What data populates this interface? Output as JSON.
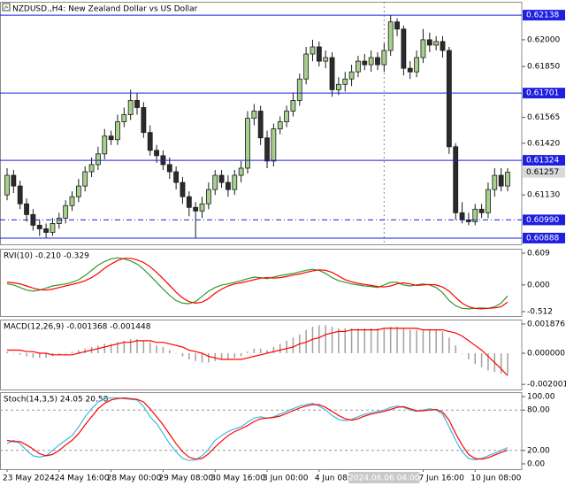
{
  "chart_data": [
    {
      "type": "candlestick",
      "title": "NZDUSD.,H4:  New Zealand Dollar vs US Dollar",
      "categories": [
        "23 May 2024",
        null,
        null,
        null,
        null,
        null,
        null,
        null,
        "24 May 16:00",
        null,
        null,
        null,
        null,
        null,
        null,
        null,
        "28 May 00:00",
        null,
        null,
        null,
        null,
        null,
        null,
        null,
        "29 May 08:00",
        null,
        null,
        null,
        null,
        null,
        null,
        null,
        "30 May 16:00",
        null,
        null,
        null,
        null,
        null,
        null,
        null,
        "3 Jun 00:00",
        null,
        null,
        null,
        null,
        null,
        null,
        null,
        "4 Jun 08:00",
        null,
        null,
        null,
        null,
        null,
        null,
        null,
        null,
        null,
        "2024.06.06 04:00",
        null,
        null,
        null,
        null,
        null,
        "7 Jun 16:00",
        null,
        null,
        null,
        null,
        null,
        null,
        null,
        "10 Jun 08:00",
        null,
        null,
        null,
        null,
        null
      ],
      "series": [
        {
          "up_color": "#a8d08d",
          "down_color": "#2b2b2b",
          "open": [
            0.6113,
            0.6124,
            0.6118,
            0.6108,
            0.6102,
            0.6096,
            0.6094,
            0.6092,
            0.6097,
            0.61,
            0.6107,
            0.6112,
            0.6118,
            0.6126,
            0.613,
            0.6136,
            0.6146,
            0.6144,
            0.6154,
            0.6158,
            0.6166,
            0.6162,
            0.6148,
            0.6138,
            0.6135,
            0.613,
            0.6126,
            0.612,
            0.6112,
            0.6106,
            0.6104,
            0.6108,
            0.6116,
            0.6124,
            0.612,
            0.6116,
            0.6124,
            0.6128,
            0.6156,
            0.616,
            0.6145,
            0.6132,
            0.615,
            0.6154,
            0.616,
            0.6166,
            0.6178,
            0.6192,
            0.6196,
            0.6188,
            0.619,
            0.6172,
            0.6175,
            0.6178,
            0.6182,
            0.6188,
            0.6186,
            0.619,
            0.6186,
            0.6194,
            0.621,
            0.6206,
            0.6184,
            0.6182,
            0.619,
            0.62,
            0.6197,
            0.6199,
            0.6194,
            0.614,
            0.6103,
            0.6099,
            0.6098,
            0.6105,
            0.6103,
            0.6116,
            0.6124,
            0.6118
          ],
          "high": [
            0.6128,
            0.6127,
            0.6121,
            0.6111,
            0.6105,
            0.6099,
            0.6097,
            0.61,
            0.6103,
            0.611,
            0.6115,
            0.6122,
            0.6129,
            0.6134,
            0.614,
            0.615,
            0.6149,
            0.6158,
            0.6162,
            0.6172,
            0.617,
            0.6165,
            0.6152,
            0.6141,
            0.6138,
            0.6134,
            0.6129,
            0.6123,
            0.6115,
            0.6109,
            0.6112,
            0.612,
            0.6127,
            0.6127,
            0.6124,
            0.6127,
            0.6132,
            0.616,
            0.6164,
            0.6163,
            0.6149,
            0.6153,
            0.6157,
            0.6163,
            0.617,
            0.6181,
            0.6196,
            0.62,
            0.6199,
            0.6194,
            0.6193,
            0.6179,
            0.6182,
            0.6186,
            0.6191,
            0.6192,
            0.6194,
            0.6193,
            0.6198,
            0.62138,
            0.6212,
            0.6208,
            0.6188,
            0.6194,
            0.6206,
            0.6204,
            0.6202,
            0.6202,
            0.6196,
            0.6142,
            0.6109,
            0.6103,
            0.6108,
            0.6108,
            0.612,
            0.6128,
            0.6128,
            0.6128
          ],
          "low": [
            0.611,
            0.6114,
            0.6105,
            0.6098,
            0.6093,
            0.609,
            0.60888,
            0.609,
            0.6094,
            0.6097,
            0.6104,
            0.6109,
            0.6115,
            0.6123,
            0.6127,
            0.6133,
            0.6141,
            0.6141,
            0.6151,
            0.6155,
            0.6158,
            0.6145,
            0.6135,
            0.6131,
            0.6127,
            0.6122,
            0.6116,
            0.6108,
            0.6101,
            0.60888,
            0.61,
            0.6105,
            0.6113,
            0.6117,
            0.6112,
            0.6113,
            0.612,
            0.6125,
            0.6152,
            0.6141,
            0.6128,
            0.6129,
            0.6147,
            0.6151,
            0.6157,
            0.6163,
            0.6175,
            0.6188,
            0.6185,
            0.6184,
            0.6168,
            0.6169,
            0.6171,
            0.6174,
            0.6179,
            0.6183,
            0.6182,
            0.6183,
            0.6182,
            0.6191,
            0.6202,
            0.618,
            0.6178,
            0.6179,
            0.6187,
            0.6193,
            0.6194,
            0.619,
            0.6136,
            0.6099,
            0.6097,
            0.6096,
            0.6096,
            0.61,
            0.61,
            0.6112,
            0.6115,
            0.6115
          ],
          "close": [
            0.6124,
            0.6118,
            0.6108,
            0.6102,
            0.6096,
            0.6094,
            0.6092,
            0.6097,
            0.61,
            0.6107,
            0.6112,
            0.6118,
            0.6126,
            0.613,
            0.6136,
            0.6146,
            0.6144,
            0.6154,
            0.6158,
            0.6166,
            0.6162,
            0.6148,
            0.6138,
            0.6135,
            0.613,
            0.6126,
            0.612,
            0.6112,
            0.6106,
            0.6104,
            0.6108,
            0.6116,
            0.6124,
            0.612,
            0.6116,
            0.6124,
            0.6128,
            0.6156,
            0.616,
            0.6145,
            0.6132,
            0.615,
            0.6154,
            0.616,
            0.6166,
            0.6178,
            0.6192,
            0.6196,
            0.6188,
            0.619,
            0.6172,
            0.6175,
            0.6178,
            0.6182,
            0.6188,
            0.6186,
            0.619,
            0.6186,
            0.6194,
            0.621,
            0.6206,
            0.6184,
            0.6182,
            0.619,
            0.62,
            0.6197,
            0.6199,
            0.6194,
            0.614,
            0.6103,
            0.6099,
            0.6098,
            0.6105,
            0.6103,
            0.6116,
            0.6124,
            0.6118,
            0.61257
          ]
        }
      ],
      "ylim": [
        0.60853,
        0.62213
      ],
      "yticks": [
        {
          "value": 0.62,
          "label": "0.62000"
        },
        {
          "value": 0.6185,
          "label": "0.61850"
        },
        0.61565,
        {
          "value": 0.6142,
          "label": "0.61420"
        },
        {
          "value": 0.6113,
          "label": "0.61130"
        }
      ],
      "hlines": [
        0.62138,
        0.61701,
        0.61324,
        {
          "value": 0.6099,
          "label": "0.60990",
          "style": "dashdot"
        },
        0.60888
      ],
      "hline_color": "#1f1fe0",
      "last_price": 0.61257,
      "crosshair": 58,
      "grid": false
    },
    {
      "type": "line",
      "title": "RVI(10) -0.210 -0.329",
      "series": [
        {
          "color": "#2e9a2e",
          "values": [
            0.02,
            0,
            -0.05,
            -0.1,
            -0.12,
            -0.1,
            -0.06,
            -0.02,
            0,
            0.02,
            0.05,
            0.1,
            0.18,
            0.28,
            0.38,
            0.45,
            0.5,
            0.52,
            0.5,
            0.46,
            0.4,
            0.3,
            0.18,
            0.05,
            -0.08,
            -0.2,
            -0.3,
            -0.35,
            -0.36,
            -0.32,
            -0.22,
            -0.12,
            -0.05,
            0,
            0.02,
            0.05,
            0.08,
            0.12,
            0.15,
            0.14,
            0.12,
            0.15,
            0.18,
            0.2,
            0.22,
            0.25,
            0.28,
            0.3,
            0.28,
            0.22,
            0.14,
            0.08,
            0.05,
            0.02,
            0,
            -0.02,
            -0.03,
            -0.05,
            0,
            0.05,
            0.05,
            0,
            -0.02,
            0,
            0.02,
            0,
            -0.05,
            -0.15,
            -0.3,
            -0.4,
            -0.45,
            -0.46,
            -0.45,
            -0.44,
            -0.45,
            -0.42,
            -0.35,
            -0.21
          ]
        },
        {
          "color": "#ff0000",
          "values": [
            0.05,
            0.04,
            0.02,
            -0.02,
            -0.06,
            -0.09,
            -0.1,
            -0.08,
            -0.05,
            -0.02,
            0.01,
            0.04,
            0.08,
            0.14,
            0.22,
            0.32,
            0.4,
            0.47,
            0.51,
            0.51,
            0.48,
            0.43,
            0.35,
            0.24,
            0.12,
            -0.01,
            -0.14,
            -0.25,
            -0.32,
            -0.35,
            -0.33,
            -0.26,
            -0.16,
            -0.08,
            -0.02,
            0.02,
            0.04,
            0.07,
            0.1,
            0.13,
            0.14,
            0.13,
            0.14,
            0.16,
            0.19,
            0.21,
            0.24,
            0.27,
            0.29,
            0.28,
            0.24,
            0.17,
            0.1,
            0.06,
            0.03,
            0.01,
            -0.01,
            -0.03,
            -0.04,
            -0.02,
            0.02,
            0.04,
            0.02,
            -0.01,
            0,
            0.01,
            0,
            -0.04,
            -0.12,
            -0.24,
            -0.35,
            -0.42,
            -0.45,
            -0.46,
            -0.45,
            -0.44,
            -0.42,
            -0.33
          ]
        }
      ],
      "ylim": [
        -0.597,
        0.694
      ],
      "yticks": [
        0.609,
        {
          "value": 0,
          "label": "0.000"
        },
        -0.512
      ]
    },
    {
      "type": "line",
      "title": "MACD(12,26,9) -0.001368 -0.001448",
      "series": [
        {
          "type": "bar",
          "color": "#a0a0a0",
          "values": [
            0.0001,
            0,
            -0.0001,
            -0.0002,
            -0.0003,
            -0.0003,
            -0.0003,
            -0.0002,
            -0.0001,
            0,
            0.0001,
            0.0002,
            0.0003,
            0.0004,
            0.0005,
            0.0006,
            0.0006,
            0.0007,
            0.0008,
            0.0009,
            0.0009,
            0.0008,
            0.0007,
            0.0005,
            0.0004,
            0.0002,
            0,
            -0.0002,
            -0.0004,
            -0.0005,
            -0.0006,
            -0.0006,
            -0.0005,
            -0.0004,
            -0.0004,
            -0.0003,
            -0.0002,
            0.0001,
            0.0003,
            0.0003,
            0.0002,
            0.0004,
            0.0006,
            0.0008,
            0.001,
            0.0012,
            0.0015,
            0.0017,
            0.0018,
            0.0018,
            0.0017,
            0.0016,
            0.0016,
            0.0016,
            0.0016,
            0.0016,
            0.0016,
            0.0016,
            0.0016,
            0.0017,
            0.0017,
            0.0016,
            0.0015,
            0.0015,
            0.0015,
            0.0015,
            0.0015,
            0.0014,
            0.001,
            0.0005,
            0,
            -0.0004,
            -0.0007,
            -0.0009,
            -0.0011,
            -0.0012,
            -0.0013,
            -0.001368
          ]
        },
        {
          "color": "#ff0000",
          "values": [
            0.0002,
            0.0002,
            0.0002,
            0.0001,
            0.0001,
            0,
            0,
            -0.0001,
            -0.0001,
            -0.0001,
            -0.0001,
            0,
            0.0001,
            0.0002,
            0.0003,
            0.0004,
            0.0005,
            0.0006,
            0.0007,
            0.0007,
            0.0008,
            0.0008,
            0.0008,
            0.0007,
            0.0007,
            0.0006,
            0.0005,
            0.0004,
            0.0002,
            0.0001,
            0,
            -0.0002,
            -0.0003,
            -0.0004,
            -0.0004,
            -0.0004,
            -0.0004,
            -0.0003,
            -0.0002,
            -0.0001,
            0,
            0.0001,
            0.0002,
            0.0003,
            0.0004,
            0.0006,
            0.0007,
            0.0009,
            0.001,
            0.0012,
            0.0013,
            0.0014,
            0.0014,
            0.0015,
            0.0015,
            0.0015,
            0.0015,
            0.0015,
            0.0016,
            0.0016,
            0.0016,
            0.0016,
            0.0016,
            0.0016,
            0.0015,
            0.0015,
            0.0015,
            0.0015,
            0.0014,
            0.0013,
            0.0011,
            0.0008,
            0.0005,
            0.0002,
            -0.0002,
            -0.0006,
            -0.001,
            -0.001448
          ]
        }
      ],
      "ylim": [
        -0.002331,
        0.00216
      ],
      "yticks": [
        0.001876,
        {
          "value": 0,
          "label": "0.000000"
        },
        -0.002001
      ]
    },
    {
      "type": "line",
      "title": "Stoch(14,3,5) 24.05 20.58",
      "series": [
        {
          "color": "#3fb8e0",
          "values": [
            30,
            35,
            30,
            20,
            12,
            10,
            12,
            20,
            28,
            35,
            42,
            55,
            70,
            82,
            92,
            97,
            98,
            98,
            97,
            96,
            95,
            85,
            70,
            60,
            45,
            30,
            18,
            8,
            5,
            6,
            12,
            22,
            35,
            42,
            48,
            52,
            55,
            62,
            68,
            70,
            68,
            70,
            74,
            78,
            82,
            86,
            88,
            90,
            86,
            80,
            72,
            66,
            64,
            66,
            70,
            74,
            76,
            78,
            80,
            84,
            86,
            84,
            80,
            78,
            80,
            82,
            80,
            74,
            55,
            35,
            18,
            8,
            6,
            8,
            12,
            16,
            20,
            24.05
          ]
        },
        {
          "color": "#ff0000",
          "values": [
            35,
            33,
            33,
            28,
            22,
            15,
            12,
            14,
            20,
            28,
            35,
            45,
            58,
            70,
            82,
            90,
            95,
            97,
            98,
            97,
            96,
            92,
            82,
            70,
            58,
            44,
            30,
            18,
            10,
            7,
            8,
            15,
            25,
            34,
            42,
            48,
            52,
            57,
            63,
            67,
            68,
            69,
            71,
            75,
            79,
            83,
            86,
            88,
            88,
            84,
            78,
            72,
            67,
            65,
            67,
            71,
            74,
            76,
            78,
            81,
            84,
            85,
            82,
            79,
            79,
            80,
            81,
            77,
            65,
            45,
            28,
            14,
            8,
            7,
            9,
            13,
            17,
            20.58
          ]
        }
      ],
      "ylim": [
        -7.9,
        106.6
      ],
      "yticks": [
        {
          "value": 100,
          "label": "100.00"
        },
        {
          "value": 80,
          "label": "80.00"
        },
        {
          "value": 20,
          "label": "20.00"
        },
        {
          "value": 0,
          "label": "0.00"
        }
      ],
      "levels": [
        80,
        20
      ]
    }
  ]
}
